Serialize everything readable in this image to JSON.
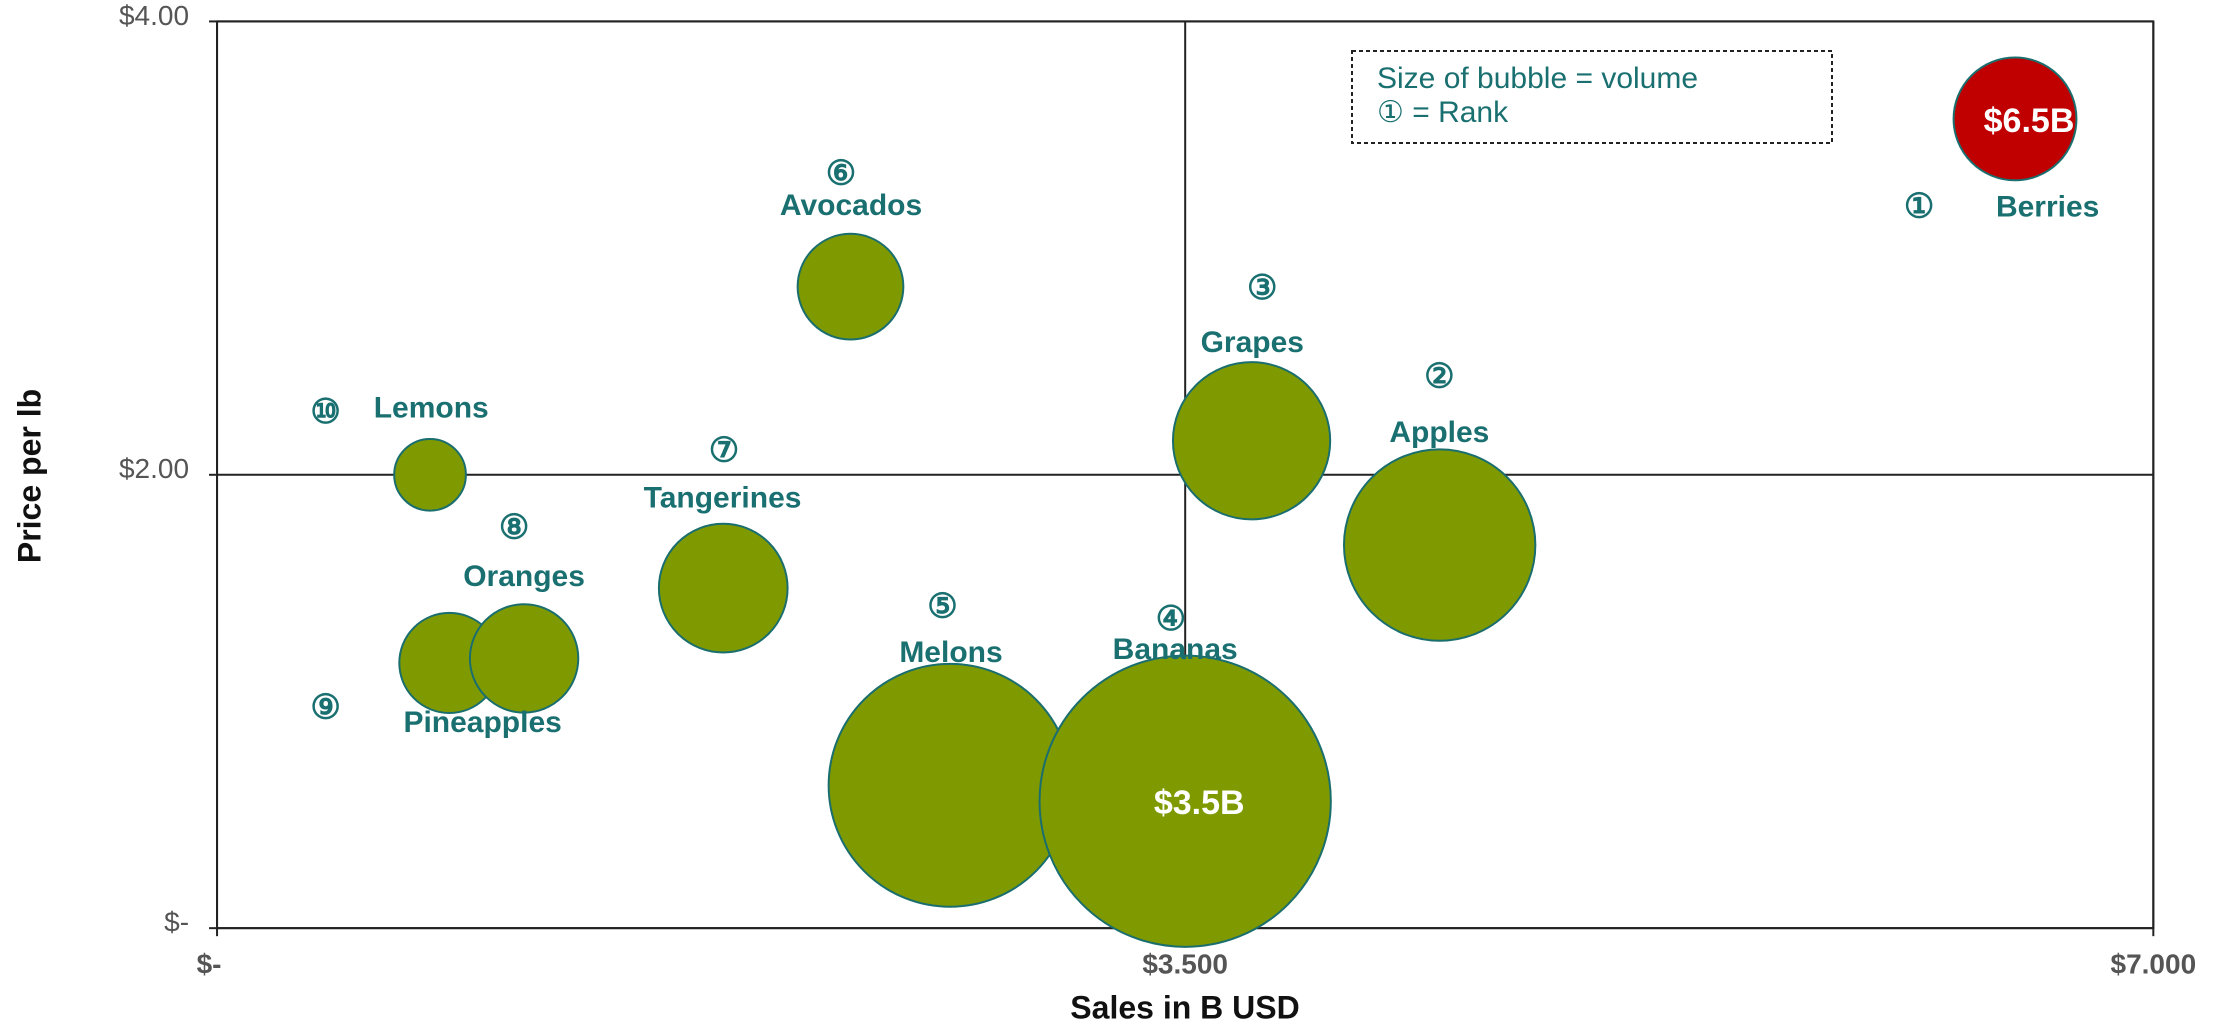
{
  "chart_data": {
    "type": "bubble",
    "x_label": "Sales in B USD",
    "y_label": "Price per lb",
    "legend_lines": [
      "Size of bubble = volume",
      "① = Rank"
    ],
    "xlim": [
      0,
      7
    ],
    "ylim": [
      0,
      4
    ],
    "xticks": [
      {
        "value": 0,
        "label": "$-"
      },
      {
        "value": 3.5,
        "label": "$3.500"
      },
      {
        "value": 7,
        "label": "$7.000"
      }
    ],
    "yticks": [
      {
        "value": 0,
        "label": "$-"
      },
      {
        "value": 2,
        "label": "$2.00"
      },
      {
        "value": 4,
        "label": "$4.00"
      }
    ],
    "grid": true,
    "series": [
      {
        "names": [
          "Berries",
          "Apples",
          "Grapes",
          "Bananas",
          "Melons",
          "Avocados",
          "Tangerines",
          "Oranges",
          "Pineapples",
          "Lemons"
        ],
        "rank_labels": [
          "①",
          "②",
          "③",
          "④",
          "⑤",
          "⑥",
          "⑦",
          "⑧",
          "⑨",
          "⑩"
        ],
        "x": [
          6.5,
          4.42,
          3.74,
          3.5,
          2.65,
          2.29,
          1.83,
          1.11,
          0.84,
          0.77
        ],
        "values": [
          3.57,
          1.69,
          2.15,
          0.56,
          0.63,
          2.83,
          1.5,
          1.19,
          1.17,
          2.0
        ],
        "sizes": [
          18.5,
          44.9,
          30.3,
          104,
          72.3,
          13.7,
          20.3,
          14.4,
          12.3,
          6.3
        ],
        "value_labels": [
          "$6.5B",
          null,
          null,
          "$3.5B",
          null,
          null,
          null,
          null,
          null,
          null
        ],
        "colors": [
          "#c00000",
          "#7f9a00",
          "#7f9a00",
          "#7f9a00",
          "#7f9a00",
          "#7f9a00",
          "#7f9a00",
          "#7f9a00",
          "#7f9a00",
          "#7f9a00"
        ]
      }
    ]
  }
}
